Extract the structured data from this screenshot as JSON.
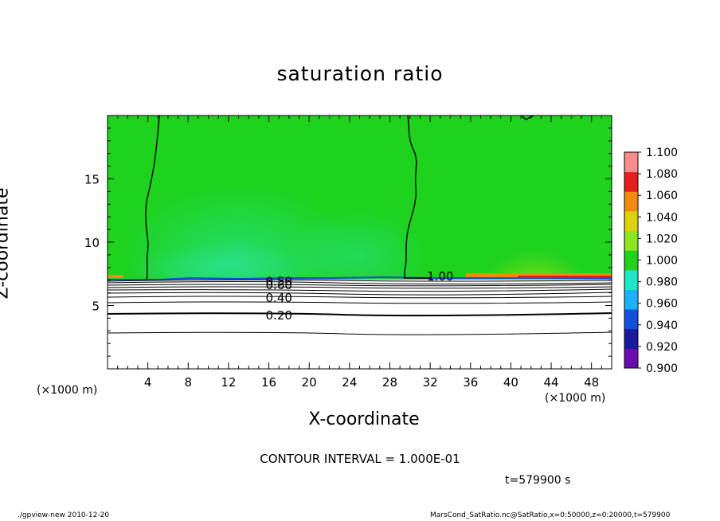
{
  "chart_data": {
    "type": "heatmap",
    "title": "saturation ratio",
    "xlabel": "X-coordinate",
    "ylabel": "Z-coordinate",
    "x_unit_label": "(×1000 m)",
    "z_unit_label": "(×1000 m)",
    "xlim": [
      0,
      50
    ],
    "ylim": [
      0,
      20
    ],
    "x_ticks": [
      4,
      8,
      12,
      16,
      20,
      24,
      28,
      32,
      36,
      40,
      44,
      48
    ],
    "y_ticks": [
      5,
      10,
      15
    ],
    "colorbar": {
      "levels": [
        0.9,
        0.92,
        0.94,
        0.96,
        0.98,
        1.0,
        1.02,
        1.04,
        1.06,
        1.08,
        1.1
      ],
      "labels": [
        "0.900",
        "0.920",
        "0.940",
        "0.960",
        "0.980",
        "1.000",
        "1.020",
        "1.040",
        "1.060",
        "1.080",
        "1.100"
      ],
      "colors": [
        "#6a0dad",
        "#1a1aa0",
        "#1450e0",
        "#19b4ff",
        "#1ee6c8",
        "#1ed21e",
        "#8ce61e",
        "#dcd20a",
        "#f08c0a",
        "#e61e1e",
        "#ff8c8c"
      ]
    },
    "contour_labels": [
      {
        "text": "1.00",
        "x": 33,
        "z": 7.3
      },
      {
        "text": "0.60",
        "x": 17,
        "z": 6.6
      },
      {
        "text": "0.50",
        "x": 17,
        "z": 6.9
      },
      {
        "text": "0.40",
        "x": 17,
        "z": 5.6
      },
      {
        "text": "0.20",
        "x": 17,
        "z": 4.2
      }
    ],
    "contour_interval_text": "CONTOUR INTERVAL = 1.000E-01",
    "time_text": "t=579900 s"
  },
  "footer": {
    "left": "./gpview-new  2010-12-20",
    "right": "MarsCond_SatRatio.nc@SatRatio,x=0:50000,z=0:20000,t=579900"
  }
}
